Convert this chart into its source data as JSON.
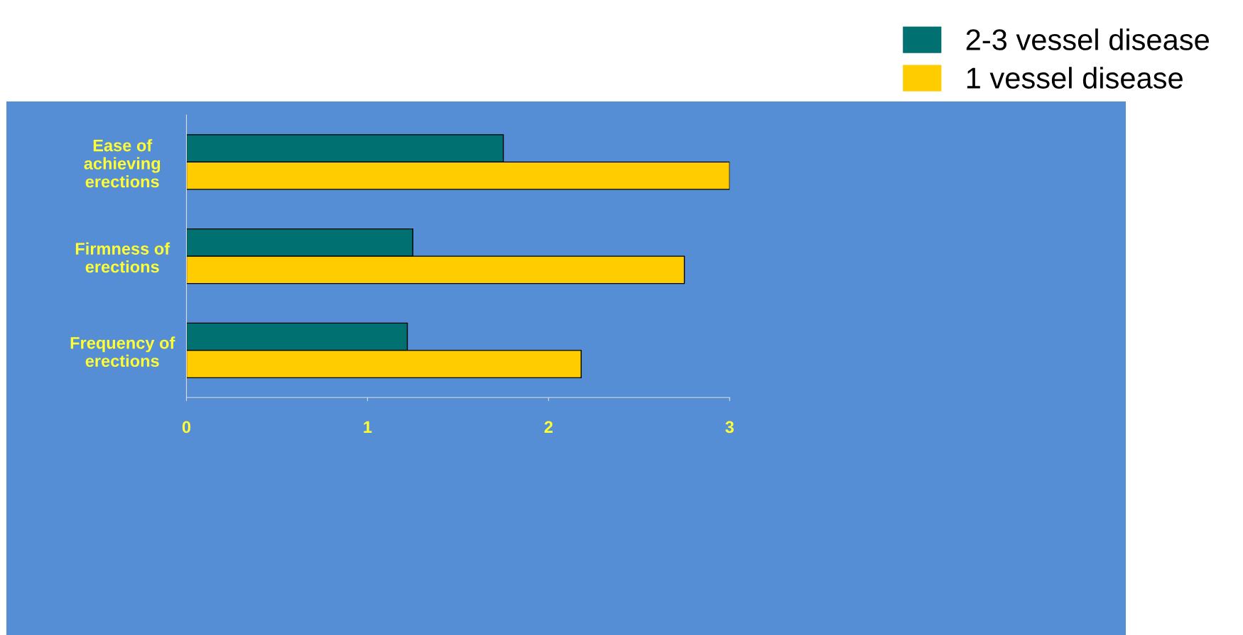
{
  "chart_data": {
    "type": "bar",
    "orientation": "horizontal",
    "categories": [
      "Ease of\nachieving\nerections",
      "Firmness of\nerections",
      "Frequency of\nerections"
    ],
    "series": [
      {
        "name": "2-3 vessel disease",
        "color": "#007070",
        "values": [
          1.75,
          1.25,
          1.22
        ]
      },
      {
        "name": "1 vessel disease",
        "color": "#ffcc00",
        "values": [
          3.0,
          2.75,
          2.18
        ]
      }
    ],
    "xlim": [
      0,
      3
    ],
    "xticks": [
      0,
      1,
      2,
      3
    ],
    "grid": false,
    "legend": "top right"
  }
}
